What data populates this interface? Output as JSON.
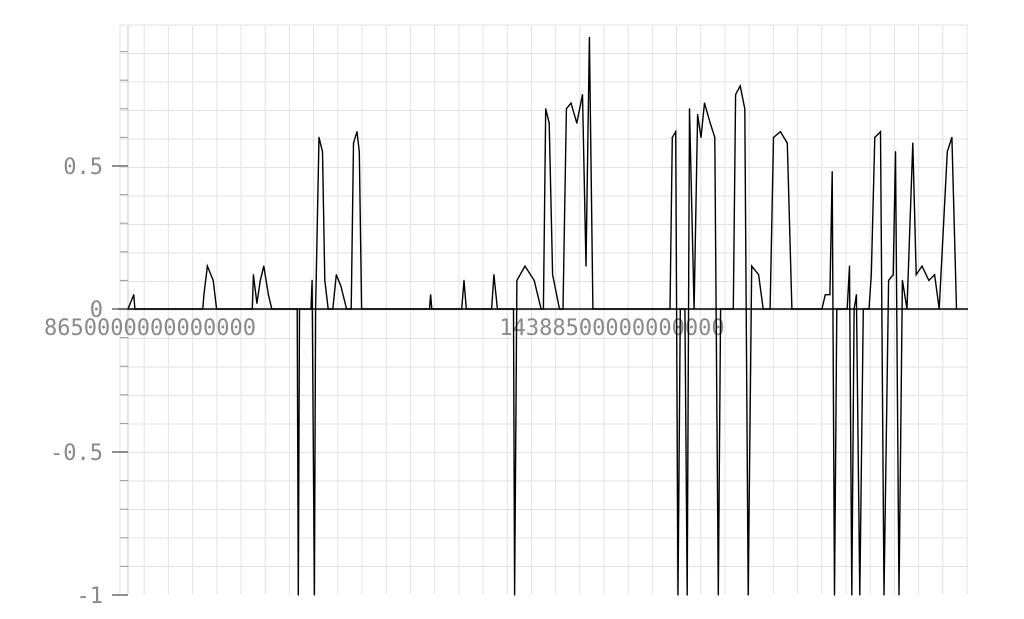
{
  "chart_data": {
    "type": "line",
    "title": "",
    "xlabel": "",
    "ylabel": "",
    "ylim": [
      -1,
      1
    ],
    "grid": true,
    "y_ticks": [
      {
        "value": 0.5,
        "label": "0.5"
      },
      {
        "value": 0,
        "label": "0"
      },
      {
        "value": -0.5,
        "label": "-0.5"
      },
      {
        "value": -1,
        "label": "-1"
      }
    ],
    "x_ticks": [
      {
        "label": "8650000000000000"
      },
      {
        "label": "14388500000000000"
      }
    ],
    "series": [
      {
        "color": "#000000",
        "points": [
          [
            0,
            0
          ],
          [
            0.5,
            0.05
          ],
          [
            0.6,
            0
          ],
          [
            6.5,
            0
          ],
          [
            6.6,
            0.05
          ],
          [
            6.9,
            0.15
          ],
          [
            7.4,
            0.1
          ],
          [
            7.7,
            0
          ],
          [
            10.8,
            0
          ],
          [
            10.9,
            0.12
          ],
          [
            11.2,
            0.02
          ],
          [
            11.5,
            0.1
          ],
          [
            11.8,
            0.15
          ],
          [
            12.2,
            0.05
          ],
          [
            12.5,
            0
          ],
          [
            14.7,
            0
          ],
          [
            14.8,
            -1
          ],
          [
            14.9,
            0
          ],
          [
            15.9,
            0
          ],
          [
            16,
            0.1
          ],
          [
            16.2,
            -1
          ],
          [
            16.3,
            0
          ],
          [
            16.6,
            0.6
          ],
          [
            16.9,
            0.55
          ],
          [
            17.1,
            0.1
          ],
          [
            17.4,
            0
          ],
          [
            17.8,
            0
          ],
          [
            18.1,
            0.12
          ],
          [
            18.5,
            0.08
          ],
          [
            19,
            0
          ],
          [
            19.4,
            0
          ],
          [
            19.6,
            0.58
          ],
          [
            19.9,
            0.62
          ],
          [
            20.1,
            0.55
          ],
          [
            20.3,
            0
          ],
          [
            26.2,
            0
          ],
          [
            26.3,
            0.05
          ],
          [
            26.4,
            0
          ],
          [
            29,
            0
          ],
          [
            29.2,
            0.1
          ],
          [
            29.4,
            0
          ],
          [
            31.6,
            0
          ],
          [
            31.8,
            0.12
          ],
          [
            32.1,
            0
          ],
          [
            33.5,
            0
          ],
          [
            33.6,
            -1
          ],
          [
            33.8,
            0.1
          ],
          [
            34.5,
            0.15
          ],
          [
            35.3,
            0.1
          ],
          [
            35.9,
            0
          ],
          [
            36.1,
            0
          ],
          [
            36.3,
            0.7
          ],
          [
            36.6,
            0.65
          ],
          [
            36.9,
            0.12
          ],
          [
            37.5,
            0
          ],
          [
            37.8,
            0
          ],
          [
            38.1,
            0.7
          ],
          [
            38.5,
            0.72
          ],
          [
            39,
            0.65
          ],
          [
            39.5,
            0.75
          ],
          [
            39.8,
            0.15
          ],
          [
            40.1,
            0.95
          ],
          [
            40.4,
            0
          ],
          [
            47.1,
            0
          ],
          [
            47.3,
            0.6
          ],
          [
            47.6,
            0.62
          ],
          [
            47.8,
            -1
          ],
          [
            48,
            0
          ],
          [
            48.4,
            0
          ],
          [
            48.6,
            -1
          ],
          [
            48.8,
            0.7
          ],
          [
            49.2,
            0
          ],
          [
            49.5,
            0.68
          ],
          [
            49.8,
            0.6
          ],
          [
            50.1,
            0.72
          ],
          [
            50.6,
            0.65
          ],
          [
            51,
            0.6
          ],
          [
            51.3,
            -1
          ],
          [
            51.5,
            0
          ],
          [
            52.6,
            0
          ],
          [
            52.8,
            0.75
          ],
          [
            53.2,
            0.78
          ],
          [
            53.6,
            0.7
          ],
          [
            53.9,
            -1
          ],
          [
            54.2,
            0.15
          ],
          [
            54.8,
            0.12
          ],
          [
            55.2,
            0
          ],
          [
            55.8,
            0
          ],
          [
            56.1,
            0.6
          ],
          [
            56.7,
            0.62
          ],
          [
            57.3,
            0.58
          ],
          [
            57.7,
            0
          ],
          [
            60.3,
            0
          ],
          [
            60.6,
            0.05
          ],
          [
            61,
            0.05
          ],
          [
            61.2,
            0.48
          ],
          [
            61.4,
            -1
          ],
          [
            61.6,
            0
          ],
          [
            62.5,
            0
          ],
          [
            62.7,
            0.15
          ],
          [
            62.9,
            -1
          ],
          [
            63.1,
            0
          ],
          [
            63.3,
            0.05
          ],
          [
            63.6,
            -1
          ],
          [
            63.9,
            0
          ],
          [
            64.4,
            0
          ],
          [
            64.6,
            0.12
          ],
          [
            64.9,
            0.6
          ],
          [
            65.4,
            0.62
          ],
          [
            65.7,
            -1
          ],
          [
            66.1,
            0.1
          ],
          [
            66.5,
            0.12
          ],
          [
            66.7,
            0.55
          ],
          [
            67,
            -1
          ],
          [
            67.3,
            0.1
          ],
          [
            67.7,
            0
          ],
          [
            68.2,
            0.58
          ],
          [
            68.5,
            0.12
          ],
          [
            69,
            0.15
          ],
          [
            69.6,
            0.1
          ],
          [
            70.1,
            0.12
          ],
          [
            70.5,
            0
          ],
          [
            71.2,
            0.55
          ],
          [
            71.6,
            0.6
          ],
          [
            72,
            0
          ]
        ]
      }
    ]
  }
}
